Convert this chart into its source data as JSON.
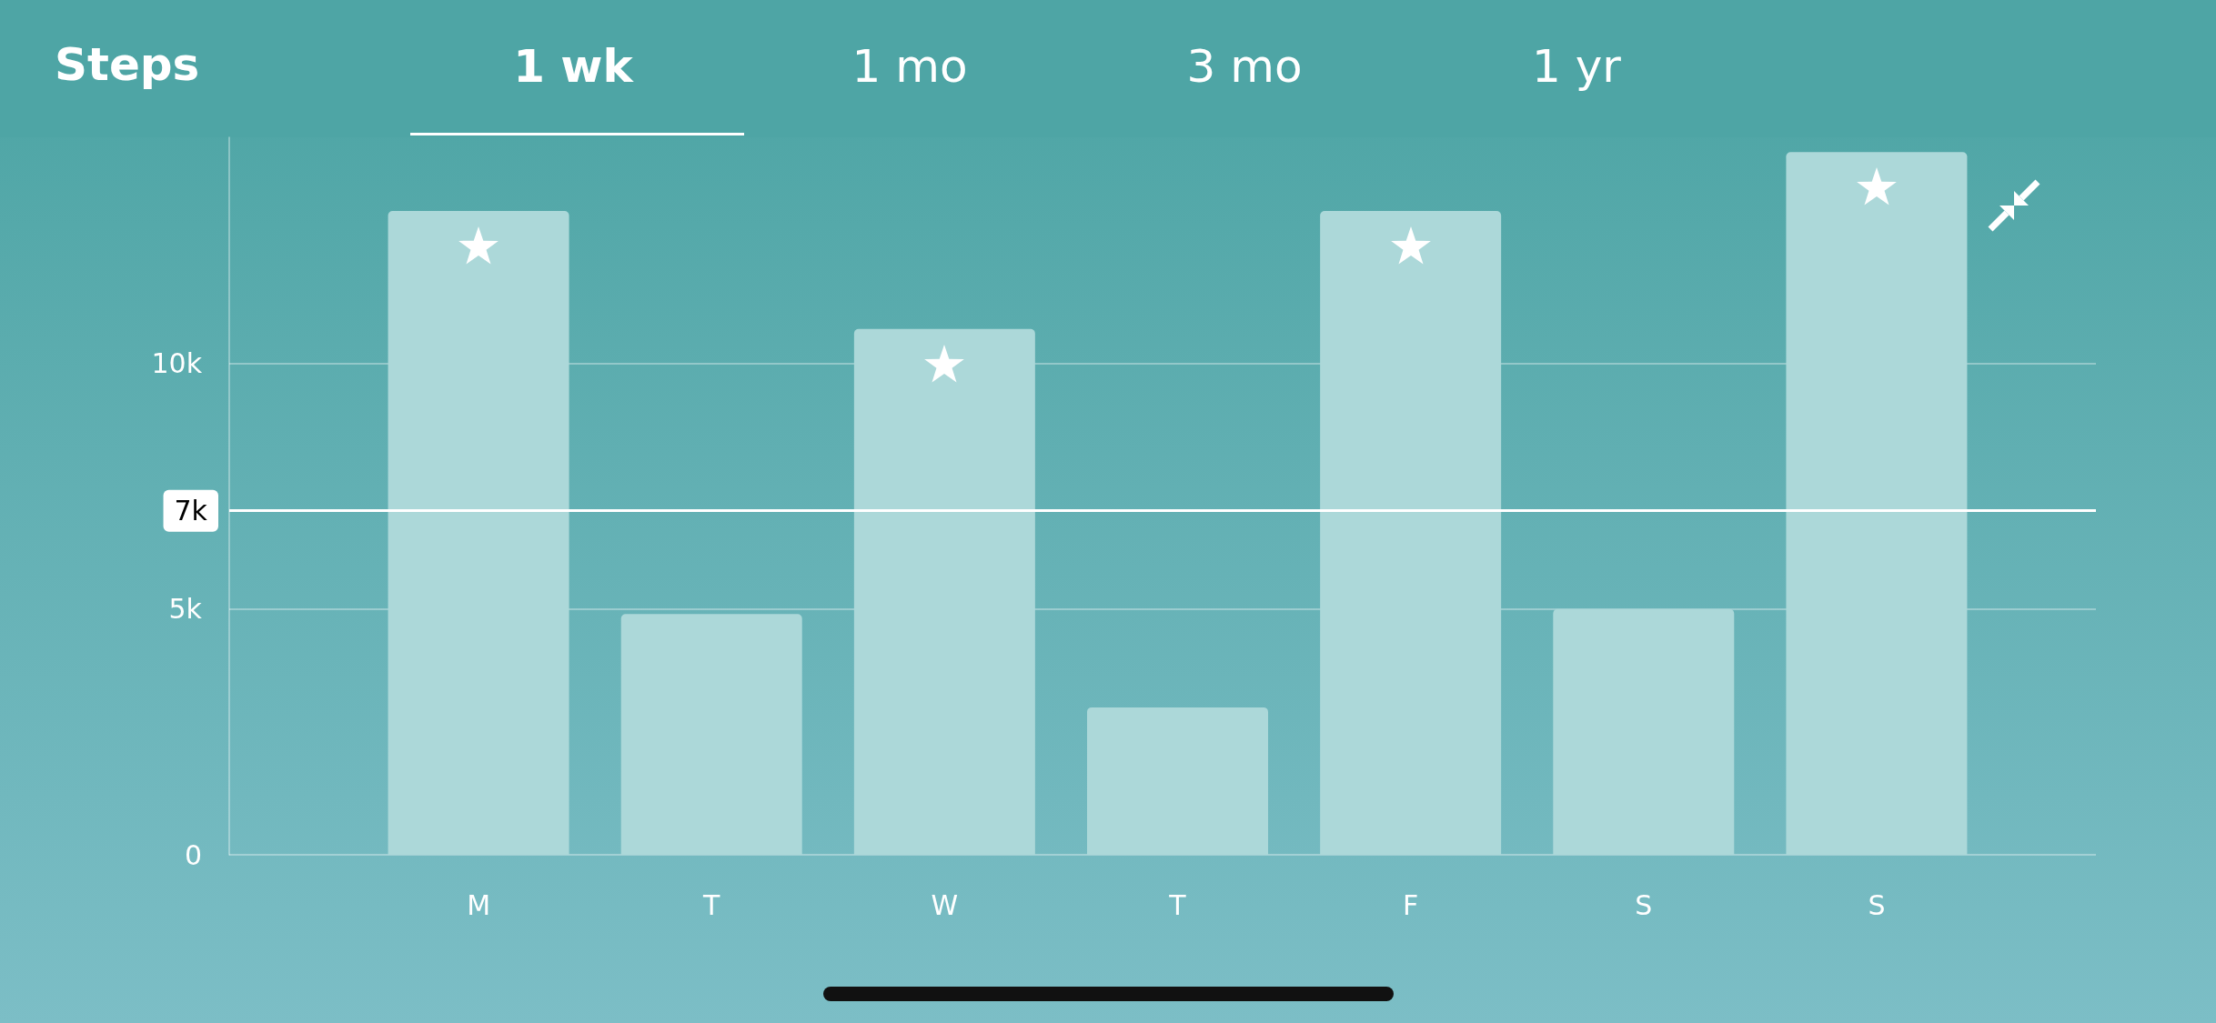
{
  "chart_data": {
    "type": "bar",
    "title": "Steps",
    "annotations": [
      "1 wk",
      "1 mo",
      "3 mo",
      "1 yr"
    ],
    "categories": [
      "M",
      "T",
      "W",
      "T",
      "F",
      "S",
      "S"
    ],
    "values": [
      13100,
      4900,
      10700,
      3000,
      13100,
      5000,
      14300
    ],
    "color": "#acd8d9",
    "ylim": [
      0,
      14600
    ],
    "yticks": [
      0,
      {
        "value": 5000,
        "label": "5k"
      },
      {
        "value": 10000,
        "label": "10k"
      }
    ],
    "grid": "y",
    "ref_lines": [
      {
        "axis": "y",
        "value": 7000,
        "label": "7k",
        "color": "#ffffff"
      }
    ]
  }
}
